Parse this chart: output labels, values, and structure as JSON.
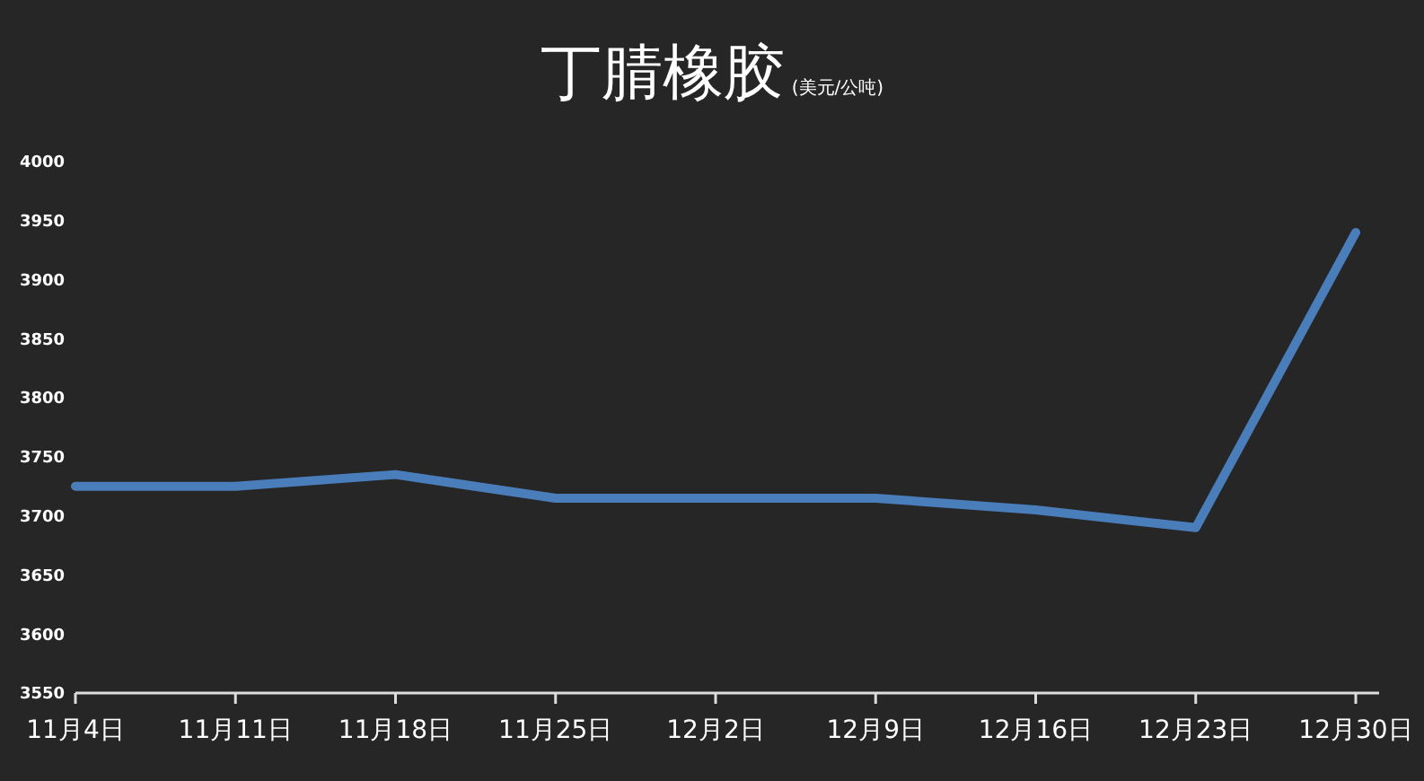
{
  "chart_data": {
    "type": "line",
    "title": "丁腈橡胶",
    "subtitle": "(美元/公吨)",
    "categories": [
      "11月4日",
      "11月11日",
      "11月18日",
      "11月25日",
      "12月2日",
      "12月9日",
      "12月16日",
      "12月23日",
      "12月30日"
    ],
    "series": [
      {
        "color": "#4a7ebb",
        "values": [
          3725,
          3725,
          3735,
          3715,
          3715,
          3715,
          3705,
          3690,
          3940
        ]
      }
    ],
    "ylim": [
      3550,
      4000
    ],
    "yticks": [
      3550,
      3600,
      3650,
      3700,
      3750,
      3800,
      3850,
      3900,
      3950,
      4000
    ],
    "grid": false,
    "marker": "none",
    "line_style": "solid"
  }
}
